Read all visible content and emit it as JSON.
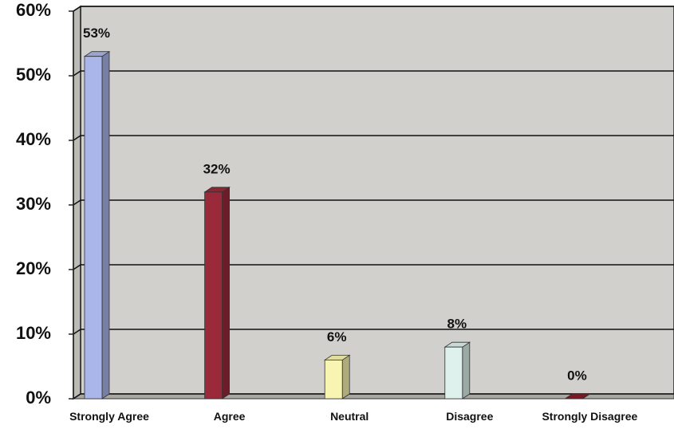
{
  "chart_data": {
    "type": "bar",
    "categories": [
      "Strongly Agree",
      "Agree",
      "Neutral",
      "Disagree",
      "Strongly Disagree"
    ],
    "values": [
      53,
      32,
      6,
      8,
      0
    ],
    "value_labels": [
      "53%",
      "32%",
      "6%",
      "8%",
      "0%"
    ],
    "colors": [
      "#aab6ea",
      "#9a2a3a",
      "#f8f4b2",
      "#dff1ec",
      "#8a1a28"
    ],
    "ylim": [
      0,
      60
    ],
    "yticks": [
      {
        "value": 0,
        "label": "0%"
      },
      {
        "value": 10,
        "label": "10%"
      },
      {
        "value": 20,
        "label": "20%"
      },
      {
        "value": 30,
        "label": "30%"
      },
      {
        "value": 40,
        "label": "40%"
      },
      {
        "value": 50,
        "label": "50%"
      },
      {
        "value": 60,
        "label": "60%"
      }
    ],
    "grid": true
  }
}
